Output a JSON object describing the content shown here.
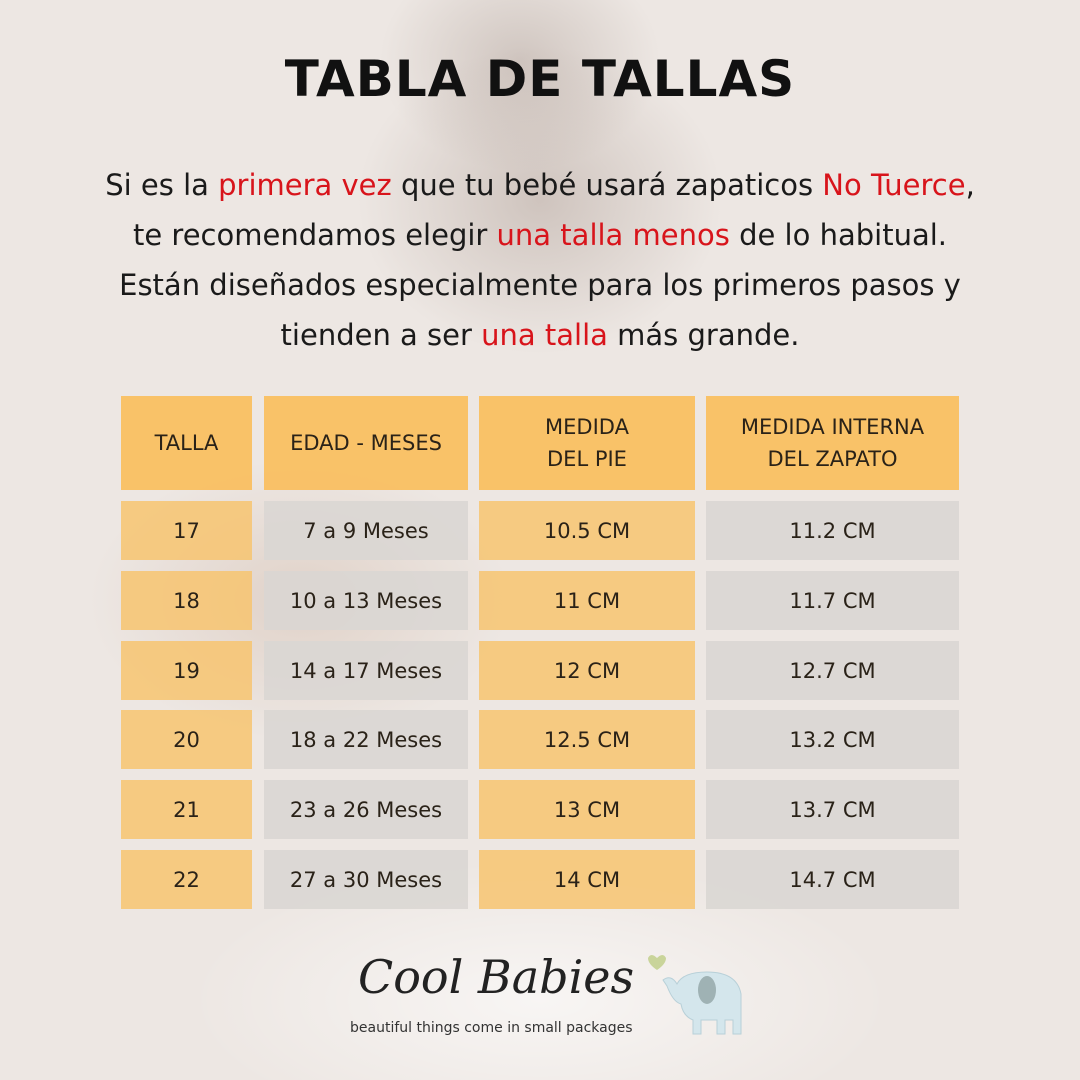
{
  "title": "TABLA DE TALLAS",
  "intro": {
    "l1": [
      "Si es la ",
      "primera vez",
      " que tu bebé usará zapaticos ",
      "No Tuerce",
      ","
    ],
    "l2": [
      "te recomendamos elegir ",
      "una talla menos",
      " de lo habitual."
    ],
    "l3": "Están diseñados especialmente para los primeros pasos y",
    "l4": [
      "tienden a ser ",
      "una talla",
      " más grande."
    ]
  },
  "colors": {
    "accent_red": "#d8141b",
    "header": "#fabe5f",
    "cell_orange": "#f7c470",
    "cell_gray": "#dad6d3"
  },
  "table": {
    "headers": [
      "TALLA",
      "EDAD - MESES",
      "MEDIDA\nDEL PIE",
      "MEDIDA INTERNA\nDEL ZAPATO"
    ],
    "rows": [
      [
        "17",
        "7 a 9 Meses",
        "10.5 CM",
        "11.2 CM"
      ],
      [
        "18",
        "10 a 13 Meses",
        "11 CM",
        "11.7 CM"
      ],
      [
        "19",
        "14 a 17 Meses",
        "12 CM",
        "12.7 CM"
      ],
      [
        "20",
        "18 a 22 Meses",
        "12.5 CM",
        "13.2 CM"
      ],
      [
        "21",
        "23 a 26 Meses",
        "13 CM",
        "13.7 CM"
      ],
      [
        "22",
        "27 a 30 Meses",
        "14 CM",
        "14.7 CM"
      ]
    ]
  },
  "logo": {
    "name": "Cool Babies",
    "tagline": "beautiful things come in small packages",
    "icon": "elephant-heart-icon"
  }
}
